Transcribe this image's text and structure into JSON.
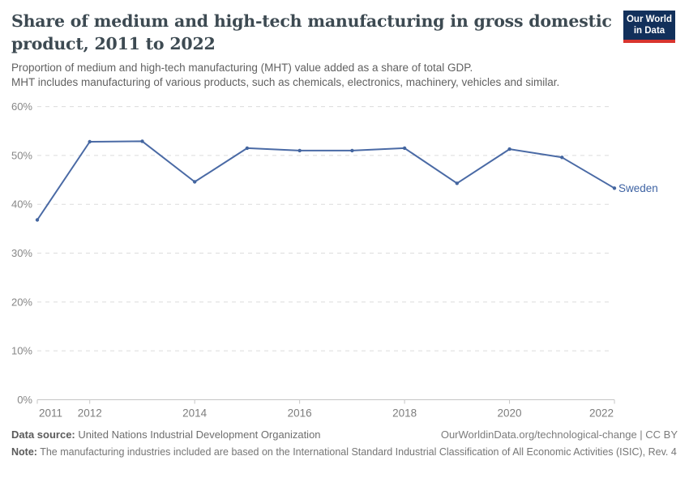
{
  "header": {
    "title_lines": [
      "Share of medium and high-tech manufacturing in gross domestic",
      "product, 2011 to 2022"
    ],
    "subtitle_lines": [
      "Proportion of medium and high-tech manufacturing (MHT) value added as a share of total GDP.",
      "MHT includes manufacturing of various products, such as chemicals, electronics, machinery, vehicles and similar."
    ],
    "logo": {
      "line1": "Our World",
      "line2": "in Data",
      "bg_color": "#12305b",
      "accent_color": "#d8352f"
    }
  },
  "chart_data": {
    "type": "line",
    "title": "Share of medium and high-tech manufacturing in gross domestic product, 2011 to 2022",
    "x": [
      2011,
      2012,
      2013,
      2014,
      2015,
      2016,
      2017,
      2018,
      2019,
      2020,
      2021,
      2022
    ],
    "series": [
      {
        "name": "Sweden",
        "values": [
          36.8,
          52.8,
          52.9,
          44.6,
          51.5,
          51.0,
          51.0,
          51.5,
          44.3,
          51.3,
          49.6,
          43.3
        ]
      }
    ],
    "x_ticks": [
      2011,
      2012,
      2014,
      2016,
      2018,
      2020,
      2022
    ],
    "y_ticks": [
      0,
      10,
      20,
      30,
      40,
      50,
      60
    ],
    "ylim": [
      0,
      60
    ],
    "xlim": [
      2011,
      2022
    ],
    "unit": "%",
    "grid": "horizontal-dashed",
    "legend_position": "end-of-line",
    "line_color": "#4a6aa5",
    "point_color": "#4466a0",
    "label_color": "#3e63a3",
    "end_label": "Sweden"
  },
  "footer": {
    "data_source_label": "Data source:",
    "data_source_value": "United Nations Industrial Development Organization",
    "citation": "OurWorldinData.org/technological-change | CC BY",
    "note_label": "Note:",
    "note_text": "The manufacturing industries included are based on the International Standard Industrial Classification of All Economic Activities (ISIC), Rev. 4"
  }
}
